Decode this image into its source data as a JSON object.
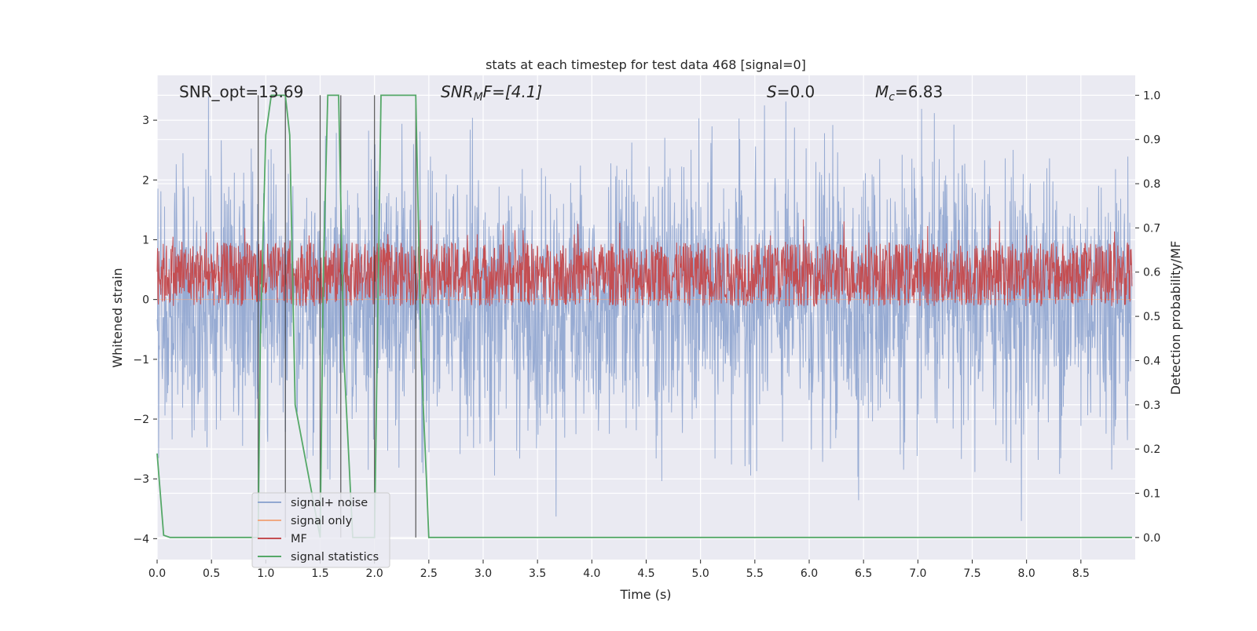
{
  "chart_data": {
    "type": "line",
    "title": "stats at each timestep for test data 468 [signal=0]",
    "xlabel": "Time (s)",
    "ylabel": "Whitened strain",
    "y2label": "Detection probability/MF",
    "xlim": [
      0.0,
      9.0
    ],
    "ylim": [
      -4.35,
      3.75
    ],
    "y2lim": [
      -0.05,
      1.045
    ],
    "xticks": [
      "0.0",
      "0.5",
      "1.0",
      "1.5",
      "2.0",
      "2.5",
      "3.0",
      "3.5",
      "4.0",
      "4.5",
      "5.0",
      "5.5",
      "6.0",
      "6.5",
      "7.0",
      "7.5",
      "8.0",
      "8.5"
    ],
    "yticks": [
      "−4",
      "−3",
      "−2",
      "−1",
      "0",
      "1",
      "2",
      "3"
    ],
    "y2ticks": [
      "0.0",
      "0.1",
      "0.2",
      "0.3",
      "0.4",
      "0.5",
      "0.6",
      "0.7",
      "0.8",
      "0.9",
      "1.0"
    ],
    "grid": true,
    "legend_position": "lower-left",
    "annotations": {
      "snr_opt": "SNR_opt=13.69",
      "snr_mf_base": "SNR",
      "snr_mf_sub": "M",
      "snr_mf_rest": "F=[4.1]",
      "s_base": "S",
      "s_rest": "=0.0",
      "mc_base": "M",
      "mc_sub": "c",
      "mc_rest": "=6.83"
    },
    "series": [
      {
        "name": "signal+ noise",
        "color": "#92a8d1",
        "axis": "left",
        "envelope_approx": {
          "typical_abs": 1.8,
          "peak_max": 3.4,
          "peak_min": -4.0
        }
      },
      {
        "name": "signal only",
        "color": "#f0a983",
        "axis": "left",
        "values_approx": "flat at 0"
      },
      {
        "name": "MF",
        "color": "#c44e52",
        "axis": "right",
        "band_approx": {
          "low": 0.55,
          "high": 0.64,
          "peak": 0.72
        }
      },
      {
        "name": "signal statistics",
        "color": "#55a868",
        "axis": "right",
        "x": [
          0.0,
          0.06,
          0.12,
          0.9,
          0.93,
          0.95,
          1.0,
          1.05,
          1.1,
          1.18,
          1.22,
          1.27,
          1.5,
          1.53,
          1.57,
          1.62,
          1.67,
          1.72,
          1.8,
          1.95,
          2.0,
          2.03,
          2.06,
          2.1,
          2.38,
          2.43,
          2.48,
          2.5,
          8.97
        ],
        "y": [
          0.19,
          0.005,
          0.0,
          0.0,
          0.0,
          0.45,
          0.91,
          1.0,
          1.0,
          1.0,
          0.91,
          0.3,
          0.0,
          0.6,
          1.0,
          1.0,
          1.0,
          0.4,
          0.0,
          0.0,
          0.0,
          0.5,
          1.0,
          1.0,
          1.0,
          0.4,
          0.12,
          0.0,
          0.0
        ]
      }
    ],
    "vertical_lines_x": [
      0.93,
      1.18,
      1.5,
      1.69,
      2.0,
      2.38
    ]
  }
}
